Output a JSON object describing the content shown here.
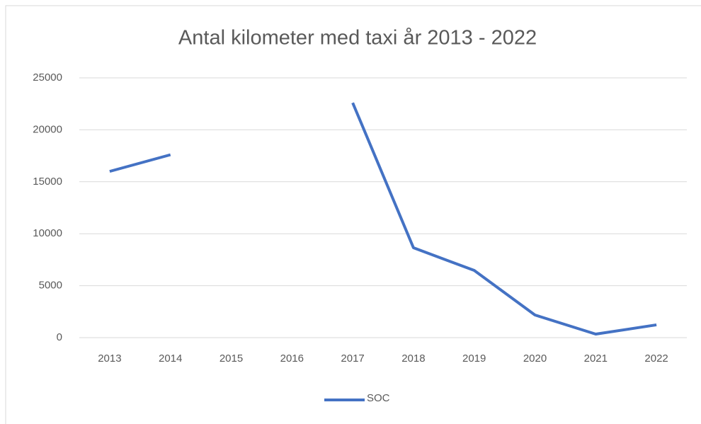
{
  "chart_data": {
    "type": "line",
    "title": "Antal kilometer med taxi år 2013 -  2022",
    "categories": [
      "2013",
      "2014",
      "2015",
      "2016",
      "2017",
      "2018",
      "2019",
      "2020",
      "2021",
      "2022"
    ],
    "series": [
      {
        "name": "SOC",
        "color": "#4472c4",
        "values": [
          16000,
          17600,
          null,
          null,
          22600,
          8650,
          6470,
          2180,
          340,
          1230
        ]
      }
    ],
    "ylim": [
      0,
      25000
    ],
    "yticks": [
      0,
      5000,
      10000,
      15000,
      20000,
      25000
    ],
    "grid": true,
    "legend": "bottom"
  }
}
